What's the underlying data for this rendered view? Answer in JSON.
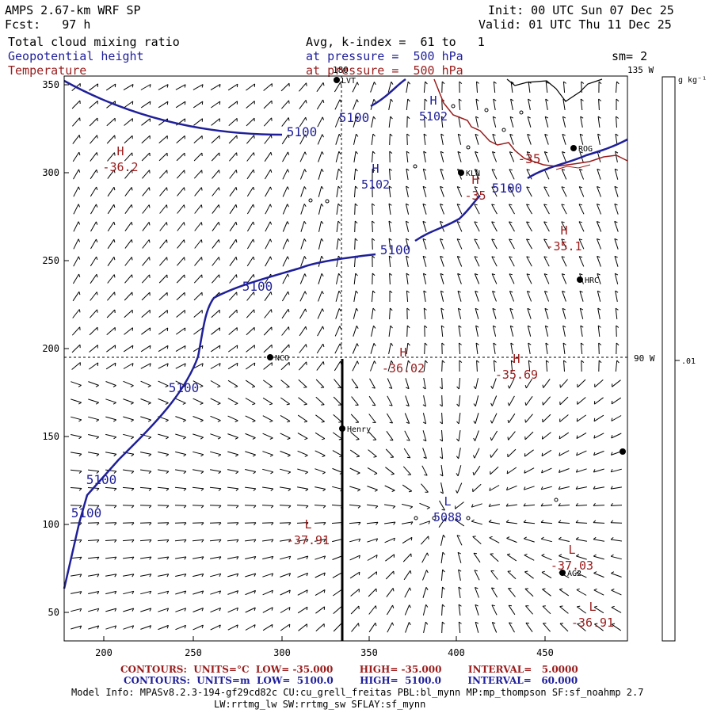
{
  "header": {
    "model": "AMPS 2.67-km WRF SP",
    "forecast": "Fcst:   97 h",
    "init": "Init: 00 UTC Sun 07 Dec 25",
    "valid": "Valid: 01 UTC Thu 11 Dec 25",
    "field1": "Total cloud mixing ratio",
    "field2": "Geopotential height",
    "field3": "Temperature",
    "avg": "Avg, k-index =  61 to   1",
    "pressure_blue": "at pressure =  500 hPa",
    "pressure_red": "at pressure =  500 hPa",
    "sm": "sm= 2"
  },
  "map": {
    "x_ticks": [
      "200",
      "250",
      "300",
      "350",
      "400",
      "450"
    ],
    "y_ticks": [
      "350",
      "300",
      "250",
      "200",
      "150",
      "100",
      "50"
    ],
    "meridian_top": "180",
    "meridian_135": "135 W",
    "meridian_90": "90 W",
    "colorbar_unit": "g kg⁻¹",
    "colorbar_value": ".01",
    "stations": [
      {
        "label": "LVT",
        "x": 425,
        "y": 101
      },
      {
        "label": "ROG",
        "x": 724,
        "y": 187
      },
      {
        "label": "KLN",
        "x": 582,
        "y": 218
      },
      {
        "label": "HRC",
        "x": 732,
        "y": 353
      },
      {
        "label": "NCO",
        "x": 341,
        "y": 451
      },
      {
        "label": "Henry",
        "x": 432,
        "y": 541
      },
      {
        "label": "AG2",
        "x": 710,
        "y": 723
      },
      {
        "label": "",
        "x": 786,
        "y": 570
      }
    ],
    "height_labels": [
      {
        "text": "5100",
        "x": 447,
        "y": 148
      },
      {
        "text": "5100",
        "x": 381,
        "y": 166
      },
      {
        "text": "5100",
        "x": 640,
        "y": 237
      },
      {
        "text": "5100",
        "x": 499,
        "y": 315
      },
      {
        "text": "5100",
        "x": 325,
        "y": 361
      },
      {
        "text": "5100",
        "x": 232,
        "y": 489
      },
      {
        "text": "5100",
        "x": 128,
        "y": 605
      },
      {
        "text": "5100",
        "x": 109,
        "y": 647
      }
    ],
    "height_extrema": [
      {
        "type": "H",
        "value": "5102",
        "x": 547,
        "y": 126
      },
      {
        "type": "H",
        "value": "5102",
        "x": 474,
        "y": 212
      },
      {
        "type": "L",
        "value": "5088",
        "x": 565,
        "y": 632
      }
    ],
    "temp_labels": [
      {
        "text": "-35",
        "x": 668,
        "y": 200
      }
    ],
    "temp_extrema": [
      {
        "type": "H",
        "value": "-36.2",
        "x": 152,
        "y": 190
      },
      {
        "type": "H",
        "value": "-35",
        "x": 600,
        "y": 226
      },
      {
        "type": "H",
        "value": "-35.1",
        "x": 712,
        "y": 290
      },
      {
        "type": "H",
        "value": "-36.02",
        "x": 509,
        "y": 444
      },
      {
        "type": "H",
        "value": "-35.69",
        "x": 652,
        "y": 452
      },
      {
        "type": "L",
        "value": "-37.91",
        "x": 389,
        "y": 661
      },
      {
        "type": "L",
        "value": "-37.03",
        "x": 722,
        "y": 693
      },
      {
        "type": "L",
        "value": "-36.91",
        "x": 748,
        "y": 765
      }
    ]
  },
  "footer": {
    "line1": "CONTOURS:  UNITS=°C  LOW= -35.000        HIGH= -35.000        INTERVAL=   5.0000",
    "line2": "CONTOURS:  UNITS=m  LOW=  5100.0        HIGH=  5100.0        INTERVAL=   60.000",
    "info1": "Model Info: MPASv8.2.3-194-gf29cd82c CU:cu_grell_freitas PBL:bl_mynn MP:mp_thompson SF:sf_noahmp 2.7",
    "info2": "LW:rrtmg_lw SW:rrtmg_sw SFLAY:sf_mynn"
  },
  "colors": {
    "height": "#1f1f9a",
    "temperature": "#9a1c1c",
    "background": "#ffffff"
  }
}
